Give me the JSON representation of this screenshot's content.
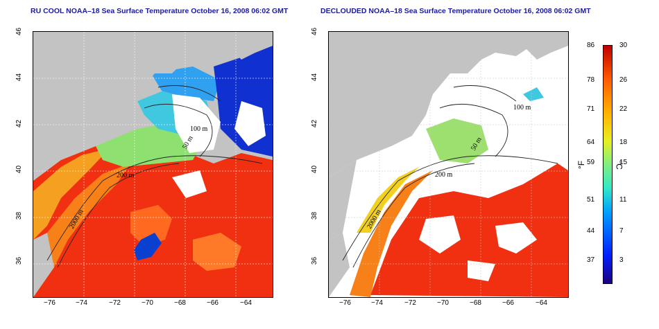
{
  "titles": {
    "left": "RU COOL NOAA–18 Sea Surface Temperature October 16, 2008 06:02 GMT",
    "right": "DECLOUDED NOAA–18 Sea Surface Temperature October 16, 2008 06:02 GMT"
  },
  "x_ticks": [
    "−76",
    "−74",
    "−72",
    "−70",
    "−68",
    "−66",
    "−64"
  ],
  "y_ticks": [
    "46",
    "44",
    "42",
    "40",
    "38",
    "36"
  ],
  "contour_labels": {
    "depth_100": "100 m",
    "depth_50": "50 m",
    "depth_200": "200 m",
    "depth_2000": "2000 m"
  },
  "colorbar": {
    "fahrenheit_ticks": [
      "86",
      "78",
      "71",
      "64",
      "59",
      "51",
      "44",
      "37"
    ],
    "celsius_ticks": [
      "30",
      "26",
      "22",
      "18",
      "15",
      "11",
      "7",
      "3"
    ],
    "fahrenheit_unit": "°F",
    "celsius_unit": "°C",
    "colors": [
      "#1d0080",
      "#0020ff",
      "#00a0ff",
      "#30e8c8",
      "#7ff07f",
      "#e8ef20",
      "#ffb000",
      "#ff5a00",
      "#c00000"
    ]
  }
}
